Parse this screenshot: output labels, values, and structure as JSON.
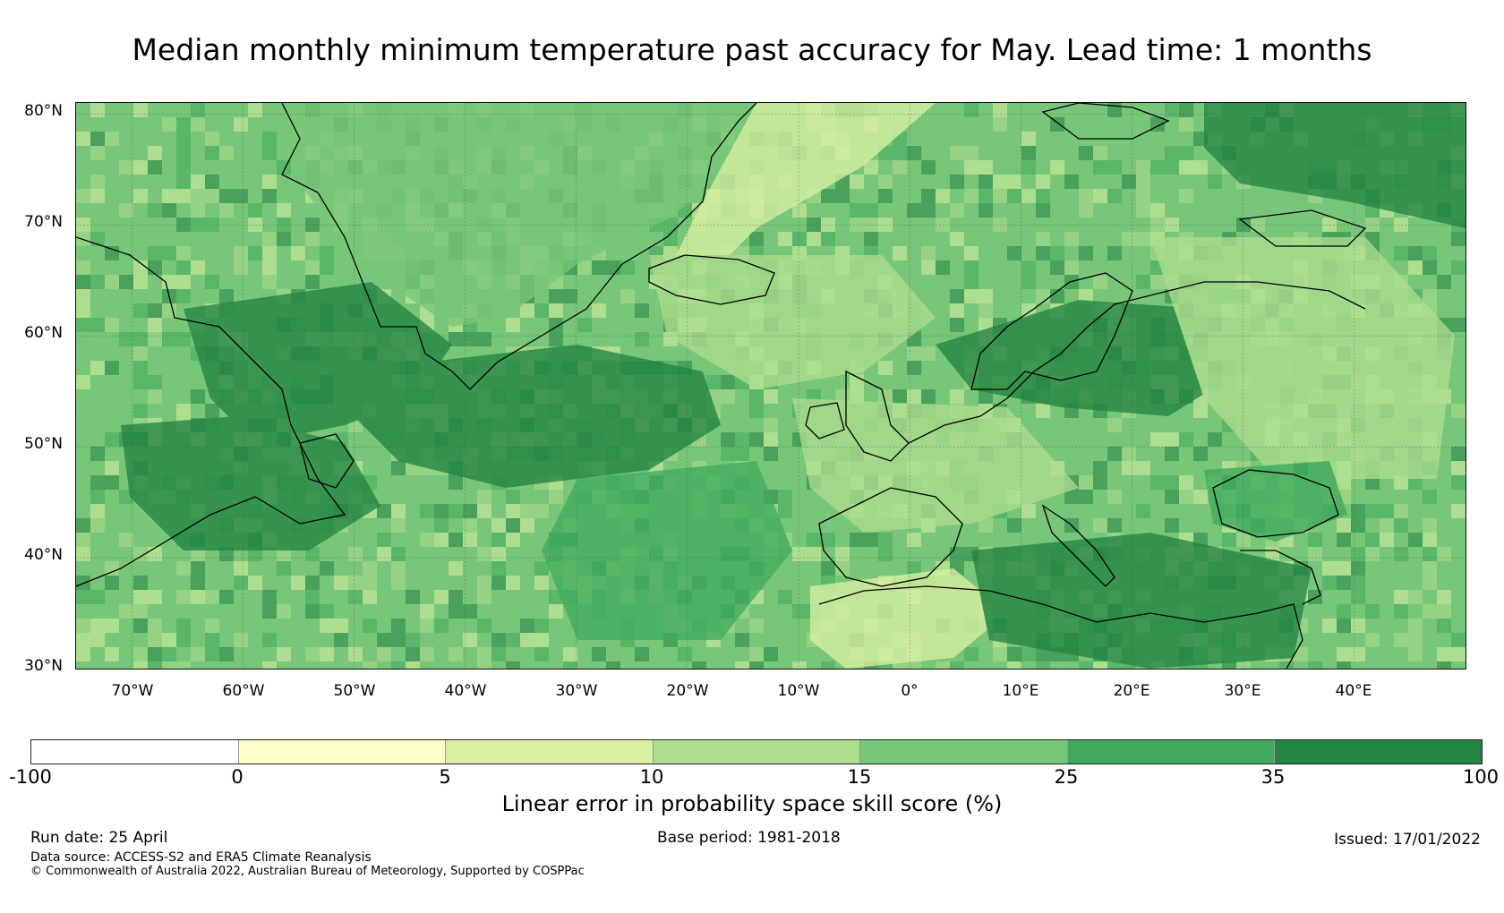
{
  "title": "Median monthly minimum temperature past accuracy for May. Lead time: 1 months",
  "map": {
    "lat_labels": [
      "80°N",
      "70°N",
      "60°N",
      "50°N",
      "40°N",
      "30°N"
    ],
    "lon_labels": [
      "70°W",
      "60°W",
      "50°W",
      "40°W",
      "30°W",
      "20°W",
      "10°W",
      "0°",
      "10°E",
      "20°E",
      "30°E",
      "40°E"
    ],
    "lat_range": [
      30,
      81
    ],
    "lon_range": [
      -75,
      50
    ],
    "regions": [
      {
        "name": "greenland_interior",
        "class": 15
      },
      {
        "name": "labrador_sea",
        "class": 35
      },
      {
        "name": "mid_north_atlantic",
        "class": 35
      },
      {
        "name": "iceland_norwegian_sea",
        "class": 10
      },
      {
        "name": "east_greenland_strait",
        "class": 5
      },
      {
        "name": "barents_arctic",
        "class": 35
      },
      {
        "name": "scandinavia_baltic",
        "class": 35
      },
      {
        "name": "western_russia",
        "class": 10
      },
      {
        "name": "iberia_france",
        "class": 10
      },
      {
        "name": "sahara",
        "class": 5
      },
      {
        "name": "mediterranean",
        "class": 35
      },
      {
        "name": "black_sea",
        "class": 25
      },
      {
        "name": "eastern_atlantic",
        "class": 25
      }
    ]
  },
  "colorbar": {
    "tick_labels": [
      "-100",
      "0",
      "5",
      "10",
      "15",
      "25",
      "35",
      "100"
    ],
    "bounds": [
      -100,
      0,
      5,
      10,
      15,
      25,
      35,
      100
    ],
    "colors": [
      "#ffffff",
      "#ffffcc",
      "#d9f0a3",
      "#addd8e",
      "#78c679",
      "#41ab5d",
      "#238443"
    ],
    "label": "Linear error in probability space skill score (%)"
  },
  "footer": {
    "run_date": "Run date: 25 April",
    "base_period": "Base period: 1981-2018",
    "issued": "Issued: 17/01/2022",
    "data_source": "Data source: ACCESS-S2 and ERA5 Climate Reanalysis",
    "copyright": "© Commonwealth of Australia 2022, Australian Bureau of Meteorology, Supported by COSPPac"
  }
}
